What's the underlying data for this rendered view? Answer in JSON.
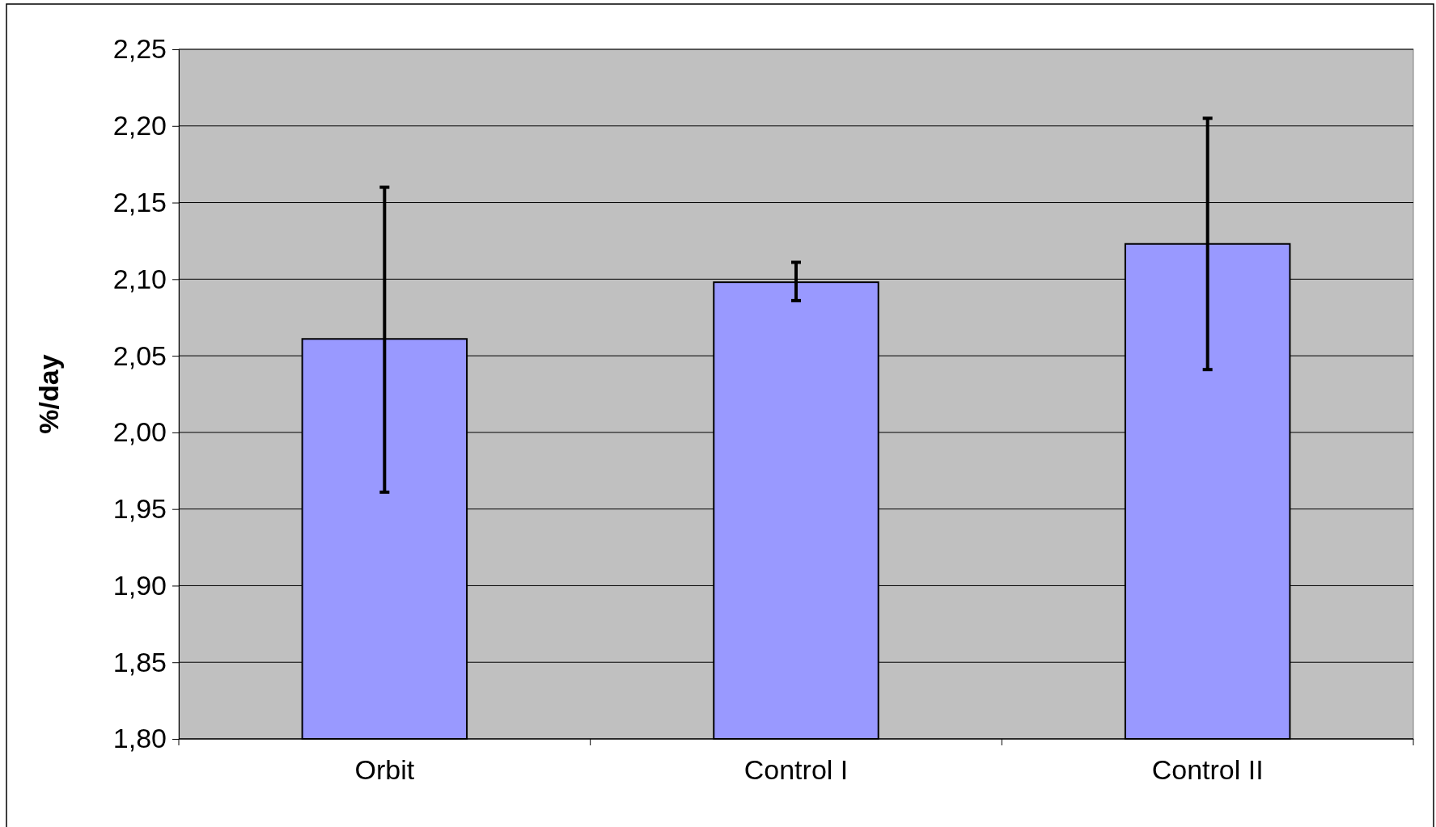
{
  "chart_data": {
    "type": "bar",
    "ylabel": "%/day",
    "categories": [
      "Orbit",
      "Control I",
      "Control II"
    ],
    "values": [
      2.061,
      2.098,
      2.123
    ],
    "errors": [
      [
        1.961,
        2.16
      ],
      [
        2.086,
        2.111
      ],
      [
        2.041,
        2.205
      ]
    ],
    "color": "#9999ff",
    "ylim": [
      1.8,
      2.25
    ],
    "yticks": [
      {
        "value": 1.8,
        "label": "1,80"
      },
      {
        "value": 1.85,
        "label": "1,85"
      },
      {
        "value": 1.9,
        "label": "1,90"
      },
      {
        "value": 1.95,
        "label": "1,95"
      },
      {
        "value": 2.0,
        "label": "2,00"
      },
      {
        "value": 2.05,
        "label": "2,05"
      },
      {
        "value": 2.1,
        "label": "2,10"
      },
      {
        "value": 2.15,
        "label": "2,15"
      },
      {
        "value": 2.2,
        "label": "2,20"
      },
      {
        "value": 2.25,
        "label": "2,25"
      }
    ],
    "grid": "y"
  }
}
